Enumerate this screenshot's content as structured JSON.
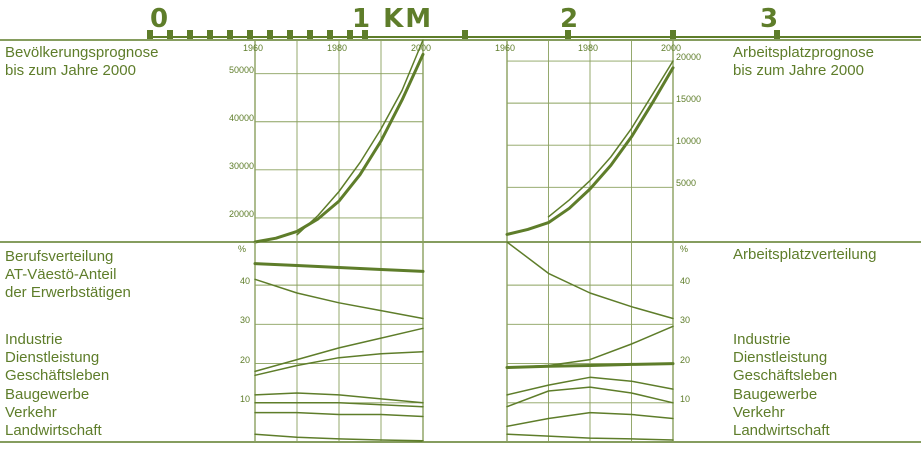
{
  "colors": {
    "ink": "#5e7d2a",
    "grid": "#8aa05e",
    "paper": "#ffffff"
  },
  "scale_bar": {
    "labels": [
      "0",
      "1 KM",
      "2",
      "3"
    ]
  },
  "left_titles": {
    "population": "Bevölkerungsprognose\nbis zum Jahre 2000",
    "occupation": "Berufsverteilung\nAT-Väestö-Anteil\nder Erwerbstätigen"
  },
  "right_titles": {
    "jobs": "Arbeitsplatzprognose\nbis zum Jahre 2000",
    "job_distribution": "Arbeitsplatzverteilung"
  },
  "sector_labels": [
    "Industrie",
    "Dienstleistung",
    "Geschäftsleben",
    "Baugewerbe",
    "Verkehr",
    "Landwirtschaft"
  ],
  "chart_data": [
    {
      "type": "line",
      "xlabel_ticks": [
        "1960",
        "1980",
        "2000"
      ],
      "y_ticks": [
        "20000",
        "30000",
        "40000",
        "50000"
      ],
      "x": [
        1960,
        1965,
        1970,
        1975,
        1980,
        1985,
        1990,
        1995,
        2000
      ],
      "series": [
        {
          "values": [
            null,
            null,
            16500,
            20500,
            25500,
            31500,
            38500,
            46500,
            57000
          ],
          "thick": false
        },
        {
          "values": [
            15000,
            15800,
            17200,
            19800,
            23500,
            29000,
            36000,
            44500,
            54000
          ],
          "thick": true
        }
      ],
      "xlim": [
        1960,
        2000
      ],
      "ylim": [
        15000,
        57000
      ]
    },
    {
      "type": "line",
      "xlabel_ticks": [
        "1960",
        "1980",
        "2000"
      ],
      "y_ticks": [
        "5000",
        "10000",
        "15000",
        "20000"
      ],
      "x": [
        1960,
        1965,
        1970,
        1975,
        1980,
        1985,
        1990,
        1995,
        2000
      ],
      "series": [
        {
          "values": [
            null,
            null,
            1500,
            3500,
            5800,
            8600,
            12000,
            16000,
            20000
          ],
          "thick": false
        },
        {
          "values": [
            -600,
            0,
            800,
            2500,
            4800,
            7600,
            11000,
            15000,
            19200
          ],
          "thick": true
        }
      ],
      "xlim": [
        1960,
        2000
      ],
      "ylim": [
        -1500,
        22500
      ]
    },
    {
      "type": "line",
      "y_unit": "%",
      "y_ticks": [
        "10",
        "20",
        "30",
        "40"
      ],
      "x": [
        1960,
        1970,
        1980,
        1990,
        2000
      ],
      "series": [
        {
          "values": [
            45.5,
            45.0,
            44.5,
            44.0,
            43.5
          ],
          "thick": true
        },
        {
          "values": [
            41.5,
            38.0,
            35.5,
            33.5,
            31.5
          ],
          "thick": false
        },
        {
          "values": [
            18.0,
            21.0,
            24.0,
            26.5,
            29.0
          ],
          "thick": false
        },
        {
          "values": [
            17.0,
            19.5,
            21.5,
            22.5,
            23.0
          ],
          "thick": false
        },
        {
          "values": [
            12.0,
            12.5,
            12.0,
            11.0,
            10.0
          ],
          "thick": false
        },
        {
          "values": [
            10.0,
            10.0,
            10.0,
            9.5,
            9.0
          ],
          "thick": false
        },
        {
          "values": [
            7.5,
            7.5,
            7.0,
            7.0,
            6.5
          ],
          "thick": false
        },
        {
          "values": [
            2.0,
            1.2,
            0.8,
            0.5,
            0.3
          ],
          "thick": false
        }
      ],
      "xlim": [
        1960,
        2000
      ],
      "ylim": [
        0,
        51
      ]
    },
    {
      "type": "line",
      "y_unit": "%",
      "y_ticks": [
        "10",
        "20",
        "30",
        "40"
      ],
      "x": [
        1960,
        1970,
        1980,
        1990,
        2000
      ],
      "series": [
        {
          "values": [
            51.0,
            43.0,
            38.0,
            34.5,
            31.5
          ],
          "thick": false
        },
        {
          "values": [
            19.0,
            19.5,
            21.0,
            25.0,
            29.5
          ],
          "thick": false
        },
        {
          "values": [
            19.0,
            19.3,
            19.5,
            19.8,
            20.0
          ],
          "thick": true
        },
        {
          "values": [
            12.0,
            14.5,
            16.5,
            15.5,
            13.5
          ],
          "thick": false
        },
        {
          "values": [
            9.0,
            13.0,
            14.0,
            12.5,
            10.0
          ],
          "thick": false
        },
        {
          "values": [
            4.0,
            6.0,
            7.5,
            7.0,
            6.0
          ],
          "thick": false
        },
        {
          "values": [
            2.0,
            1.5,
            1.0,
            0.8,
            0.5
          ],
          "thick": false
        }
      ],
      "xlim": [
        1960,
        2000
      ],
      "ylim": [
        0,
        51
      ]
    }
  ]
}
